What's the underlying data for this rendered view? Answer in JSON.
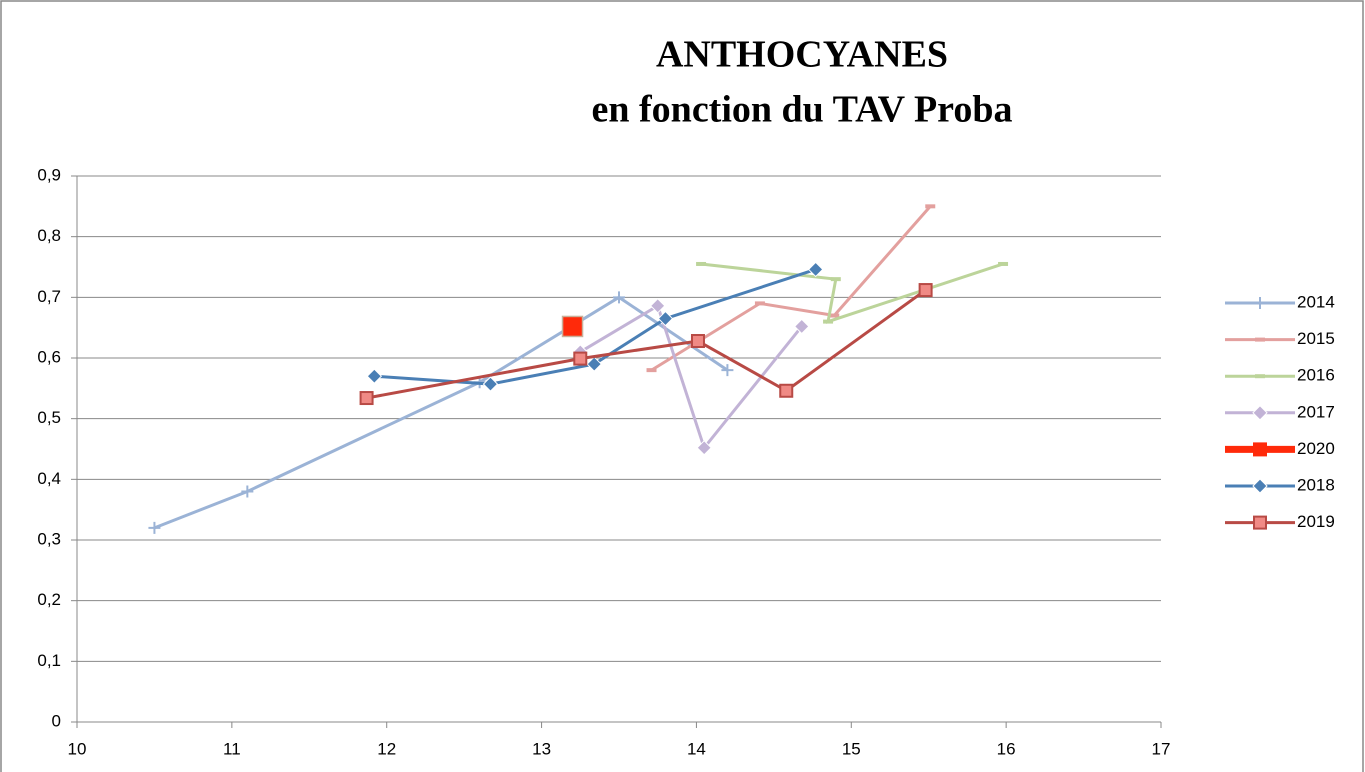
{
  "chart_data": {
    "type": "line",
    "title": [
      "ANTHOCYANES",
      "en fonction du TAV Proba"
    ],
    "xlim": [
      10,
      17
    ],
    "xticks": [
      10,
      11,
      12,
      13,
      14,
      15,
      16,
      17
    ],
    "ylim": [
      0,
      0.9
    ],
    "yticks": [
      0,
      {
        "value": 0.1,
        "label": "0,1"
      },
      {
        "value": 0.2,
        "label": "0,2"
      },
      {
        "value": 0.3,
        "label": "0,3"
      },
      {
        "value": 0.4,
        "label": "0,4"
      },
      {
        "value": 0.5,
        "label": "0,5"
      },
      {
        "value": 0.6,
        "label": "0,6"
      },
      {
        "value": 0.7,
        "label": "0,7"
      },
      {
        "value": 0.8,
        "label": "0,8"
      },
      {
        "value": 0.9,
        "label": "0,9"
      }
    ],
    "grid": true,
    "legend": "right",
    "series": [
      {
        "name": "2014",
        "color": "#9bb3d6",
        "marker": "plus",
        "x": [
          10.5,
          11.1,
          12.6,
          13.5,
          14.2
        ],
        "values": [
          0.32,
          0.38,
          0.56,
          0.7,
          0.58
        ]
      },
      {
        "name": "2015",
        "color": "#e3a09e",
        "marker": "dash",
        "x": [
          13.71,
          14.41,
          14.89,
          15.51
        ],
        "values": [
          0.58,
          0.69,
          0.67,
          0.85
        ]
      },
      {
        "name": "2016",
        "color": "#bcd49a",
        "marker": "dash",
        "x": [
          14.03,
          14.9,
          14.85,
          15.98
        ],
        "values": [
          0.755,
          0.73,
          0.66,
          0.755
        ]
      },
      {
        "name": "2017",
        "color": "#c2b3d6",
        "marker": "diamond",
        "x": [
          13.25,
          13.75,
          14.05,
          14.68
        ],
        "values": [
          0.61,
          0.686,
          0.452,
          0.652
        ]
      },
      {
        "name": "2020",
        "color": "#ff2a0a",
        "marker": "bigsquare",
        "x": [
          13.2
        ],
        "values": [
          0.652
        ]
      },
      {
        "name": "2018",
        "color": "#4a7fb5",
        "marker": "diamond",
        "x": [
          11.92,
          12.67,
          13.34,
          13.8,
          14.77
        ],
        "values": [
          0.57,
          0.557,
          0.59,
          0.665,
          0.746
        ]
      },
      {
        "name": "2019",
        "color": "#b84a45",
        "marker": "square",
        "x": [
          11.87,
          13.25,
          14.01,
          14.58,
          15.48
        ],
        "values": [
          0.534,
          0.599,
          0.628,
          0.546,
          0.712
        ]
      }
    ]
  }
}
